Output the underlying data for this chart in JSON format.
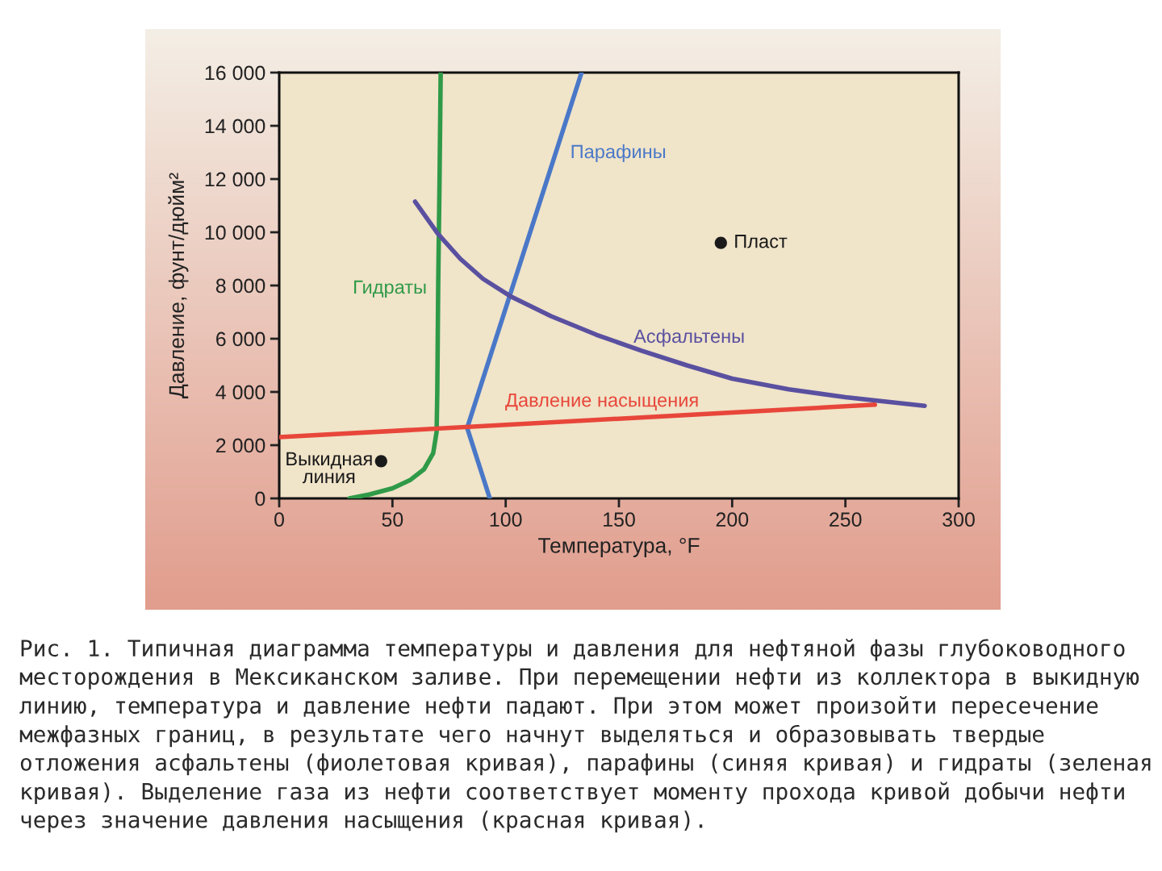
{
  "chart_data": {
    "type": "line",
    "xlabel": "Температура, °F",
    "ylabel": "Давление, фунт/дюйм²",
    "xlim": [
      0,
      300
    ],
    "xticks": [
      0,
      50,
      100,
      150,
      200,
      250,
      300
    ],
    "ylim": [
      0,
      16000
    ],
    "yticks": [
      0,
      {
        "value": 2000,
        "label": "2 000"
      },
      {
        "value": 4000,
        "label": "4 000"
      },
      {
        "value": 6000,
        "label": "6 000"
      },
      {
        "value": 8000,
        "label": "8 000"
      },
      {
        "value": 10000,
        "label": "10 000"
      },
      {
        "value": 12000,
        "label": "12 000"
      },
      {
        "value": 14000,
        "label": "14 000"
      },
      {
        "value": 16000,
        "label": "16 000"
      }
    ],
    "series": [
      {
        "name": "Гидраты",
        "color": "#2f9a48",
        "x": [
          31,
          40,
          50,
          58,
          64,
          68,
          69.5,
          69.8,
          70.2,
          70.8,
          71.3
        ],
        "values": [
          0,
          150,
          380,
          700,
          1100,
          1700,
          2500,
          4000,
          8000,
          12000,
          16000
        ]
      },
      {
        "name": "Парафины",
        "color": "#4a78c8",
        "x": [
          93,
          83,
          133.5
        ],
        "values": [
          0,
          2650,
          16000
        ]
      },
      {
        "name": "Асфальтены",
        "color": "#5a50a0",
        "x": [
          60,
          70,
          80,
          90,
          102,
          120,
          140,
          160,
          180,
          200,
          225,
          250,
          285
        ],
        "values": [
          11150,
          9950,
          9000,
          8250,
          7600,
          6850,
          6150,
          5550,
          5000,
          4500,
          4100,
          3800,
          3480
        ]
      },
      {
        "name": "Давление насыщения",
        "color": "#e8463a",
        "x": [
          0,
          263
        ],
        "values": [
          2300,
          3520
        ]
      },
      {
        "name": "Пласт",
        "type": "scatter",
        "marker": "circle",
        "color": "#1a1a1a",
        "x": [
          195
        ],
        "values": [
          9600
        ]
      },
      {
        "name": "Выкидная линия",
        "type": "scatter",
        "marker": "circle",
        "color": "#1a1a1a",
        "x": [
          45
        ],
        "values": [
          1400
        ]
      }
    ],
    "annotations": [
      "Рис. 1. Типичная диаграмма температуры и давления для нефтяной фазы глубоководного месторождения в Мексиканском заливе. При перемещении нефти из коллектора в выкидную линию, температура и давление нефти падают. При этом может произойти пересечение межфазных границ, в результате чего начнут выделяться и образовывать твердые отложения асфальтены (фиолетовая кривая), парафины (синяя кривая) и гидраты (зеленая кривая). Выделение газа из нефти соответствует моменту прохода кривой добычи нефти через значение давления насыщения (красная кривая)."
    ]
  }
}
